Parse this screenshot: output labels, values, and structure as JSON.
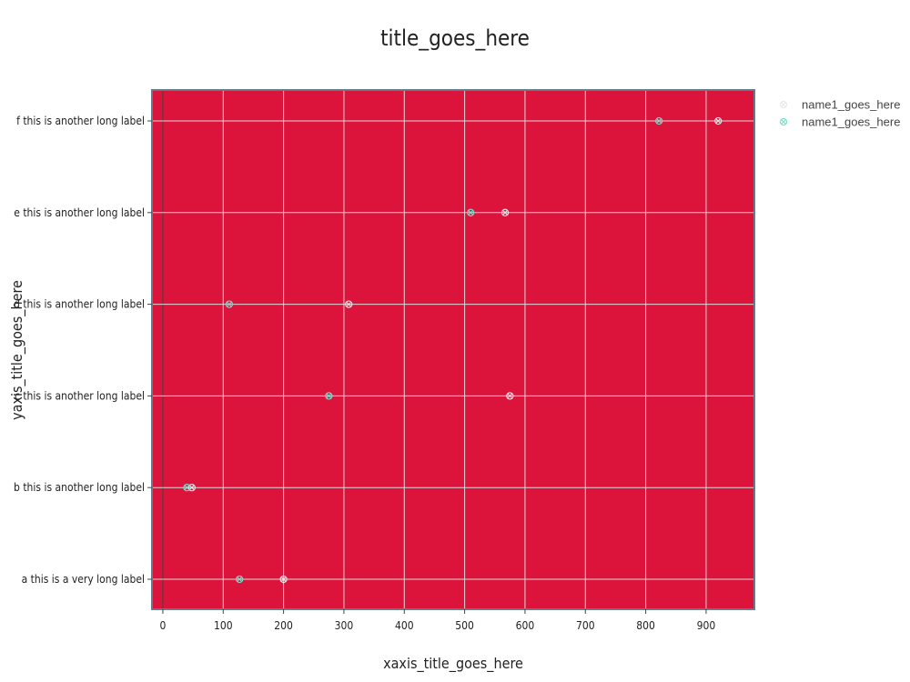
{
  "chart_data": {
    "type": "scatter",
    "title": "title_goes_here",
    "xlabel": "xaxis_title_goes_here",
    "ylabel": "yaxis_title_goes_here",
    "xlim": [
      -18,
      980
    ],
    "xticks": [
      0,
      100,
      200,
      300,
      400,
      500,
      600,
      700,
      800,
      900
    ],
    "categories": [
      "a this is a very long label",
      "b this is another long label",
      "c this is another long label",
      "d this is another long label",
      "e this is another long label",
      "f this is another long label"
    ],
    "grid": true,
    "legend_position": "top-right",
    "plot_background": "#dc143c",
    "series": [
      {
        "name": "name1_goes_here",
        "color": "#e8e8e8",
        "marker": "circle-x-open",
        "values": [
          200,
          48,
          575,
          308,
          567,
          920
        ]
      },
      {
        "name": "name1_goes_here",
        "color": "#7fdbca",
        "marker": "circle-x-open",
        "values": [
          127,
          40,
          275,
          110,
          510,
          822
        ]
      }
    ]
  }
}
